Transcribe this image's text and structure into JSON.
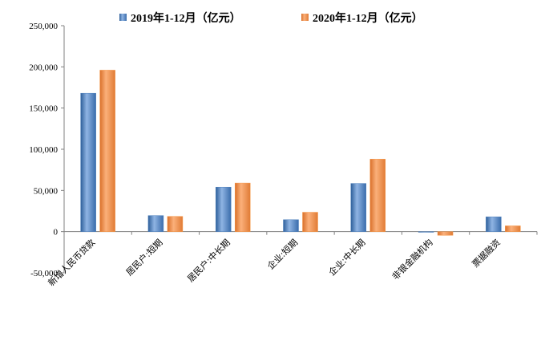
{
  "chart_data": {
    "type": "bar",
    "title": "",
    "xlabel": "",
    "ylabel": "",
    "categories": [
      "新增人民币贷款",
      "居民户:短期",
      "居民户:中长期",
      "企业:短期",
      "企业:中长期",
      "非银金融机构",
      "票据融资"
    ],
    "series": [
      {
        "name": "2019年1-12月（亿元）",
        "values": [
          168000,
          19500,
          54000,
          14500,
          58500,
          -800,
          18000
        ]
      },
      {
        "name": "2020年1-12月（亿元）",
        "values": [
          196000,
          18500,
          59000,
          23500,
          88000,
          -4500,
          7000
        ]
      }
    ],
    "ylim": [
      -50000,
      250000
    ],
    "yticks": [
      -50000,
      0,
      50000,
      100000,
      150000,
      200000,
      250000
    ],
    "ytick_labels": [
      "-50,000",
      "0",
      "50,000",
      "100,000",
      "150,000",
      "200,000",
      "250,000"
    ],
    "grid": false,
    "legend_position": "top"
  },
  "colors": {
    "series_0": "#4f81bd",
    "series_1": "#f79646"
  }
}
